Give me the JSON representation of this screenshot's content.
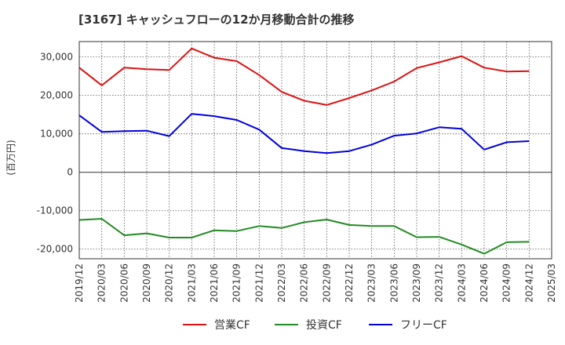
{
  "chart_data": {
    "type": "line",
    "title": "[3167]  キャッシュフローの12か月移動合計の推移",
    "ylabel": "(百万円)",
    "xlabel": "",
    "ylim": [
      -22500,
      34000
    ],
    "yticks": [
      30000,
      20000,
      10000,
      0,
      -10000,
      -20000
    ],
    "ytick_labels": [
      "30,000",
      "20,000",
      "10,000",
      "0",
      "-10,000",
      "-20,000"
    ],
    "categories": [
      "2019/12",
      "2020/03",
      "2020/06",
      "2020/09",
      "2020/12",
      "2021/03",
      "2021/06",
      "2021/09",
      "2021/12",
      "2022/03",
      "2022/06",
      "2022/09",
      "2022/12",
      "2023/03",
      "2023/06",
      "2023/09",
      "2023/12",
      "2024/03",
      "2024/06",
      "2024/09",
      "2024/12",
      "2025/03"
    ],
    "grid": true,
    "legend_position": "bottom",
    "series": [
      {
        "name": "営業CF",
        "color": "#dd1111",
        "values": [
          27200,
          22600,
          27200,
          26800,
          26600,
          32200,
          29800,
          28900,
          25300,
          20900,
          18600,
          17500,
          19300,
          21300,
          23600,
          27100,
          28600,
          30200,
          27200,
          26200,
          26300,
          null
        ]
      },
      {
        "name": "投資CF",
        "color": "#228B22",
        "values": [
          -12400,
          -12100,
          -16400,
          -15900,
          -17000,
          -17000,
          -15100,
          -15300,
          -14000,
          -14500,
          -13000,
          -12300,
          -13700,
          -14000,
          -14000,
          -16900,
          -16800,
          -18800,
          -21200,
          -18200,
          -18100,
          null
        ]
      },
      {
        "name": "フリーCF",
        "color": "#0000dd",
        "values": [
          14800,
          10500,
          10700,
          10800,
          9400,
          15200,
          14600,
          13600,
          11100,
          6300,
          5500,
          5000,
          5500,
          7200,
          9500,
          10100,
          11700,
          11300,
          5900,
          7800,
          8100,
          null
        ]
      }
    ]
  }
}
